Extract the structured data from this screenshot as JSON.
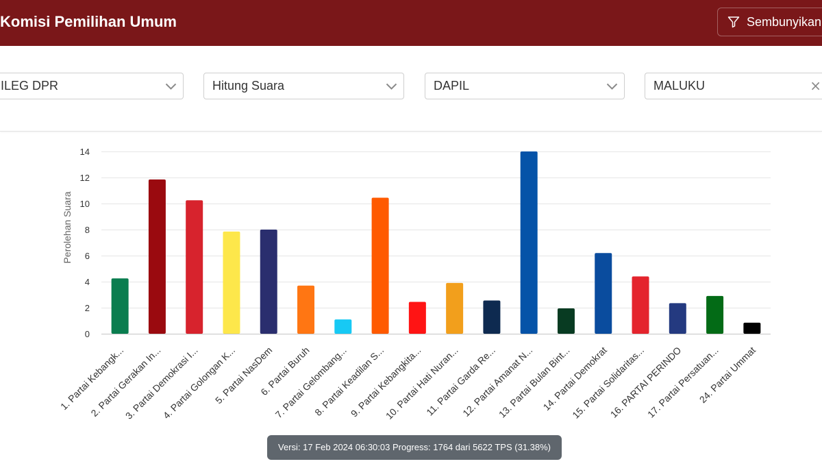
{
  "theme": {
    "header_bg": "#7a1719",
    "status_bg": "#5f666d"
  },
  "header": {
    "title": "Komisi Pemilihan Umum",
    "hide_button_label": "Sembunyikan",
    "hide_button_icon": "filter-icon"
  },
  "filters": [
    {
      "value": "ILEG DPR",
      "icon": "chevron-down-icon"
    },
    {
      "value": "Hitung Suara",
      "icon": "chevron-down-icon"
    },
    {
      "value": "DAPIL",
      "icon": "chevron-down-icon"
    },
    {
      "value": "MALUKU",
      "icon": "close-icon",
      "clear_symbol": "×"
    }
  ],
  "chart_data": {
    "type": "bar",
    "ylabel": "Perolehan Suara",
    "ylim": [
      0,
      14
    ],
    "yticks": [
      0,
      2,
      4,
      6,
      8,
      10,
      12,
      14
    ],
    "grid": true,
    "categories": [
      "1. Partai Kebangk...",
      "2. Partai Gerakan In...",
      "3. Partai Demokrasi I...",
      "4. Partai Golongan K...",
      "5. Partai NasDem",
      "6. Partai Buruh",
      "7. Partai Gelombang...",
      "8. Partai Keadilan S...",
      "9. Partai Kebangkita...",
      "10. Partai Hati Nuran...",
      "11. Partai Garda Re...",
      "12. Partai Amanat N...",
      "13. Partai Bulan Bint...",
      "14. Partai Demokrat",
      "15. Partai Solidaritas...",
      "16. PARTAI PERINDO",
      "17. Partai Persatuan...",
      "24. Partai Ummat"
    ],
    "values": [
      4.25,
      11.85,
      10.25,
      7.85,
      8.0,
      3.7,
      1.1,
      10.45,
      2.45,
      3.9,
      2.55,
      14.0,
      1.95,
      6.2,
      4.4,
      2.35,
      2.9,
      0.85
    ],
    "colors": [
      "#0a7d4f",
      "#9a0a0f",
      "#d7232d",
      "#fde74b",
      "#2a2e6e",
      "#ff7613",
      "#17c9f4",
      "#ff5a00",
      "#ff1414",
      "#f29f1c",
      "#0e2a50",
      "#0553a8",
      "#083b22",
      "#0a4c9e",
      "#e4242d",
      "#243a80",
      "#036b16",
      "#000000"
    ]
  },
  "status": {
    "version_label": "Versi:",
    "version": "17 Feb 2024 06:30:03",
    "progress_label": "Progress:",
    "progress_text": "1764 dari 5622 TPS (31.38%)"
  }
}
